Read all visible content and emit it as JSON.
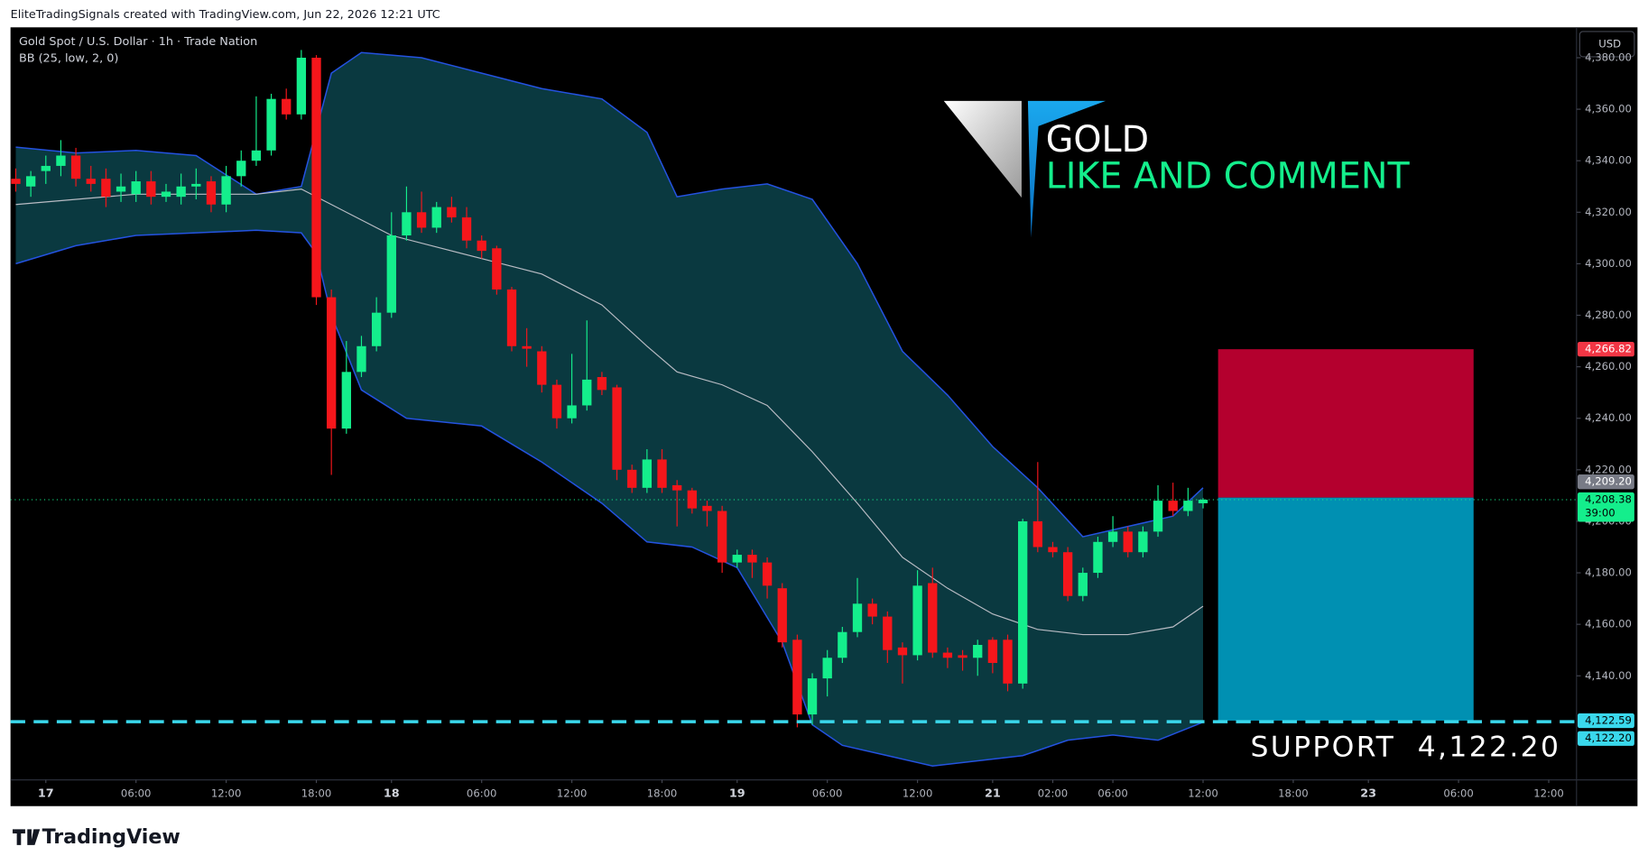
{
  "chart_data": {
    "type": "candlestick",
    "attribution": "EliteTradingSignals created with TradingView.com, Jun 22, 2026 12:21 UTC",
    "title": "Gold Spot / U.S. Dollar · 1h · Trade Nation",
    "indicator_label": "BB (25, low, 2, 0)",
    "currency": "USD",
    "footer": "TradingView",
    "annotations": {
      "headline": "GOLD",
      "call": "LIKE AND COMMENT",
      "support": "SUPPORT  4,122.20"
    },
    "colors": {
      "up": "#14ee8c",
      "down": "#f5161b",
      "band": "#2452e0",
      "band_fill": "#0a3940",
      "mid": "#b9bcc4",
      "stop": "#b4002e",
      "target": "#0090b2",
      "support": "#3ad8ec",
      "last": "#14ee8c"
    },
    "xlim": [
      -0.35,
      103.85
    ],
    "ylim": [
      4099.6,
      4391.8
    ],
    "xticks": [
      {
        "value": 2,
        "label": "17"
      },
      {
        "value": 8,
        "label": "06:00"
      },
      {
        "value": 14,
        "label": "12:00"
      },
      {
        "value": 20,
        "label": "18:00"
      },
      {
        "value": 25,
        "label": "18"
      },
      {
        "value": 31,
        "label": "06:00"
      },
      {
        "value": 37,
        "label": "12:00"
      },
      {
        "value": 43,
        "label": "18:00"
      },
      {
        "value": 48,
        "label": "19"
      },
      {
        "value": 54,
        "label": "06:00"
      },
      {
        "value": 60,
        "label": "12:00"
      },
      {
        "value": 65,
        "label": "21"
      },
      {
        "value": 69,
        "label": "02:00"
      },
      {
        "value": 73,
        "label": "06:00"
      },
      {
        "value": 79,
        "label": "12:00"
      },
      {
        "value": 85,
        "label": "18:00"
      },
      {
        "value": 90,
        "label": "23"
      },
      {
        "value": 96,
        "label": "06:00"
      },
      {
        "value": 102,
        "label": "12:00"
      }
    ],
    "yticks": [
      {
        "value": 4140,
        "label": "4,140.00"
      },
      {
        "value": 4160,
        "label": "4,160.00"
      },
      {
        "value": 4180,
        "label": "4,180.00"
      },
      {
        "value": 4200,
        "label": "4,200.00"
      },
      {
        "value": 4220,
        "label": "4,220.00"
      },
      {
        "value": 4240,
        "label": "4,240.00"
      },
      {
        "value": 4260,
        "label": "4,260.00"
      },
      {
        "value": 4280,
        "label": "4,280.00"
      },
      {
        "value": 4300,
        "label": "4,300.00"
      },
      {
        "value": 4320,
        "label": "4,320.00"
      },
      {
        "value": 4340,
        "label": "4,340.00"
      },
      {
        "value": 4360,
        "label": "4,360.00"
      },
      {
        "value": 4380,
        "label": "4,380.00"
      }
    ],
    "candles": {
      "open": [
        4333,
        4330,
        4336,
        4338,
        4342,
        4333,
        4333,
        4328,
        4327,
        4332,
        4326,
        4326,
        4330,
        4332,
        4323,
        4334,
        4340,
        4344,
        4364,
        4358,
        4380,
        4287,
        4236,
        4258,
        4268,
        4281,
        4311,
        4320,
        4314,
        4322,
        4318,
        4309,
        4306,
        4290,
        4268,
        4266,
        4253,
        4240,
        4245,
        4256,
        4252,
        4220,
        4213,
        4224,
        4214,
        4212,
        4206,
        4204,
        4184,
        4187,
        4184,
        4174,
        4154,
        4125,
        4139,
        4147,
        4157,
        4168,
        4163,
        4151,
        4148,
        4176,
        4149,
        4148,
        4147,
        4154,
        4154,
        4137,
        4200,
        4190,
        4188,
        4171,
        4180,
        4192,
        4196,
        4188,
        4196,
        4208,
        4204,
        4207
      ],
      "high": [
        4337,
        4336,
        4342,
        4348,
        4345,
        4338,
        4337,
        4335,
        4336,
        4336,
        4331,
        4335,
        4337,
        4334,
        4338,
        4344,
        4365,
        4366,
        4368,
        4383,
        4381,
        4290,
        4270,
        4272,
        4287,
        4320,
        4330,
        4328,
        4324,
        4326,
        4322,
        4311,
        4307,
        4291,
        4275,
        4268,
        4255,
        4265,
        4278,
        4258,
        4253,
        4222,
        4228,
        4228,
        4216,
        4213,
        4208,
        4206,
        4189,
        4189,
        4186,
        4176,
        4156,
        4141,
        4150,
        4159,
        4178,
        4170,
        4165,
        4153,
        4181,
        4182,
        4151,
        4150,
        4154,
        4155,
        4156,
        4201,
        4223,
        4192,
        4190,
        4182,
        4194,
        4202,
        4198,
        4198,
        4214,
        4215,
        4213,
        4209
      ],
      "low": [
        4328,
        4326,
        4331,
        4334,
        4330,
        4328,
        4322,
        4324,
        4324,
        4323,
        4324,
        4323,
        4325,
        4320,
        4320,
        4330,
        4338,
        4342,
        4356,
        4356,
        4284,
        4218,
        4234,
        4256,
        4266,
        4279,
        4309,
        4312,
        4312,
        4316,
        4306,
        4302,
        4288,
        4266,
        4260,
        4250,
        4236,
        4238,
        4243,
        4249,
        4216,
        4211,
        4211,
        4211,
        4198,
        4203,
        4198,
        4180,
        4182,
        4178,
        4170,
        4151,
        4120,
        4121,
        4132,
        4145,
        4155,
        4160,
        4145,
        4137,
        4146,
        4147,
        4143,
        4142,
        4140,
        4141,
        4134,
        4135,
        4188,
        4186,
        4169,
        4169,
        4178,
        4190,
        4186,
        4186,
        4194,
        4202,
        4202,
        4205
      ],
      "close": [
        4331,
        4334,
        4338,
        4342,
        4333,
        4331,
        4326,
        4330,
        4332,
        4326,
        4328,
        4330,
        4331,
        4323,
        4334,
        4340,
        4344,
        4364,
        4358,
        4380,
        4287,
        4236,
        4258,
        4268,
        4281,
        4311,
        4320,
        4314,
        4322,
        4318,
        4309,
        4305,
        4290,
        4268,
        4267,
        4253,
        4240,
        4245,
        4255,
        4251,
        4220,
        4213,
        4224,
        4213,
        4212,
        4205,
        4204,
        4184,
        4187,
        4184,
        4175,
        4153,
        4125,
        4139,
        4147,
        4157,
        4168,
        4163,
        4150,
        4148,
        4175,
        4149,
        4147,
        4147,
        4152,
        4145,
        4137,
        4200,
        4190,
        4188,
        4171,
        4180,
        4192,
        4196,
        4188,
        4196,
        4208,
        4204,
        4208,
        4208.38
      ]
    },
    "bands": {
      "upper": {
        "x": [
          0,
          4,
          8,
          12,
          16,
          19,
          21,
          23,
          27,
          31,
          35,
          39,
          42,
          44,
          47,
          50,
          53,
          56,
          59,
          62,
          65,
          68,
          71,
          74,
          77,
          79
        ],
        "values": [
          4345.3,
          4343,
          4344,
          4342,
          4327,
          4330,
          4374,
          4382,
          4380,
          4374,
          4368,
          4364,
          4351,
          4326,
          4329,
          4331,
          4325,
          4300,
          4266,
          4249,
          4229,
          4213,
          4194,
          4198,
          4202,
          4213
        ]
      },
      "middle": {
        "x": [
          0,
          8,
          16,
          19,
          21,
          25,
          31,
          35,
          39,
          42,
          44,
          47,
          50,
          53,
          56,
          59,
          62,
          65,
          68,
          71,
          74,
          77,
          79
        ],
        "values": [
          4323,
          4327,
          4327,
          4329,
          4323,
          4311,
          4302,
          4296,
          4284,
          4268,
          4258,
          4253,
          4245,
          4227,
          4207,
          4186,
          4174,
          4164,
          4158,
          4156,
          4156,
          4159,
          4167
        ]
      },
      "lower": {
        "x": [
          0,
          4,
          8,
          12,
          16,
          19,
          20,
          21,
          23,
          26,
          31,
          35,
          39,
          42,
          45,
          48,
          51,
          53,
          55,
          58,
          61,
          64,
          67,
          70,
          73,
          76,
          79
        ],
        "values": [
          4300,
          4307,
          4311,
          4312,
          4313,
          4312,
          4304,
          4280,
          4251,
          4240,
          4237,
          4223,
          4207,
          4192,
          4190,
          4182,
          4153,
          4121,
          4113,
          4109,
          4105,
          4107,
          4109,
          4115,
          4117,
          4115,
          4122
        ]
      }
    },
    "position_x": [
      80,
      97
    ],
    "price_labels": [
      {
        "value": 4266.82,
        "label": "4,266.82",
        "color": "#f23645"
      },
      {
        "value": 4209.2,
        "label": "4,209.20",
        "color": "#787b86"
      },
      {
        "value": 4208.38,
        "label": "4,208.38",
        "color": "#14ee8c"
      },
      {
        "value": 4122.59,
        "label": "4,122.59",
        "color": "#3ad8ec"
      },
      {
        "value": 4122.2,
        "label": "4,122.20",
        "color": "#3ad8ec"
      }
    ],
    "countdown": "39:00"
  }
}
